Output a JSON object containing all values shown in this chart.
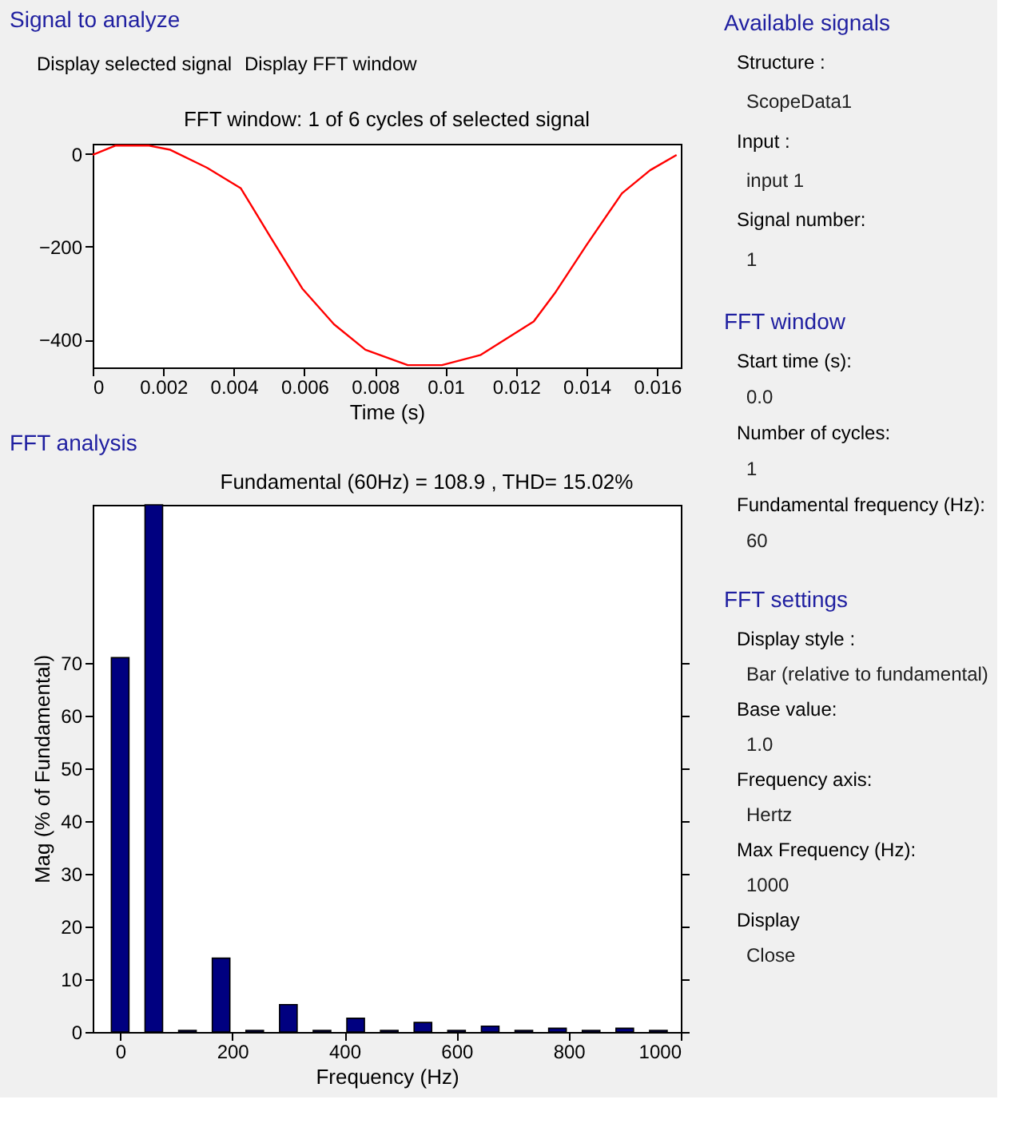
{
  "chart_data": [
    {
      "type": "line",
      "title": "FFT window: 1 of 6 cycles of selected signal",
      "xlabel": "Time (s)",
      "annotations": [
        "Signal to analyze",
        "Display selected signal",
        "Display FFT window"
      ],
      "x": [
        0,
        0.00064,
        0.0016,
        0.0022,
        0.00325,
        0.0042,
        0.00504,
        0.00594,
        0.00684,
        0.00773,
        0.00893,
        0.0099,
        0.011,
        0.0125,
        0.0131,
        0.014,
        0.015,
        0.0158,
        0.01655
      ],
      "series": [
        {
          "color": "#ff0000",
          "values": [
            -2,
            18,
            18,
            9,
            -30,
            -74,
            -179,
            -290,
            -367,
            -422,
            -455,
            -455,
            -433,
            -361,
            -300,
            -196,
            -85,
            -35,
            -2
          ]
        }
      ],
      "xlim": [
        0,
        0.01667
      ],
      "xticks": [
        0,
        0.002,
        0.004,
        0.006,
        0.008,
        0.01,
        0.012,
        0.014,
        0.016
      ],
      "ylim": [
        -460,
        22
      ],
      "yticks": [
        -400,
        -200,
        0
      ],
      "grid": false,
      "legend": false,
      "marker": "none",
      "line_style": "solid"
    },
    {
      "type": "bar",
      "title": "Fundamental (60Hz) = 108.9 , THD= 15.02%",
      "xlabel": "Frequency (Hz)",
      "ylabel": "Mag (% of Fundamental)",
      "annotations": [
        "FFT analysis"
      ],
      "x": [
        0,
        60,
        120,
        180,
        240,
        300,
        360,
        420,
        480,
        540,
        600,
        660,
        720,
        780,
        840,
        900,
        960
      ],
      "values": [
        71,
        100,
        0.3,
        14,
        0.3,
        5.2,
        0.3,
        2.6,
        0.3,
        1.8,
        0.3,
        1.1,
        0.3,
        0.7,
        0.3,
        0.7,
        0.3
      ],
      "color": "#000080",
      "xlim": [
        -49,
        1000
      ],
      "xticks": [
        0,
        200,
        400,
        600,
        800,
        1000
      ],
      "ylim": [
        0,
        100
      ],
      "yticks": [
        0,
        10,
        20,
        30,
        40,
        50,
        60,
        70
      ],
      "grid": false,
      "legend": false
    },
    {
      "type": "other",
      "title": "Available signals",
      "annotations": [
        "Structure :",
        "ScopeData1",
        "Input :",
        "input 1",
        "Signal number:",
        "1"
      ]
    },
    {
      "type": "other",
      "title": "FFT window",
      "annotations": [
        "Start time (s):",
        "0.0",
        "Number of cycles:",
        "1",
        "Fundamental frequency (Hz):",
        "60"
      ]
    },
    {
      "type": "other",
      "title": "FFT settings",
      "annotations": [
        "Display style :",
        "Bar (relative to fundamental)",
        "Base value:",
        "1.0",
        "Frequency axis:",
        "Hertz",
        "Max Frequency (Hz):",
        "1000",
        "Display",
        "Close"
      ]
    }
  ]
}
